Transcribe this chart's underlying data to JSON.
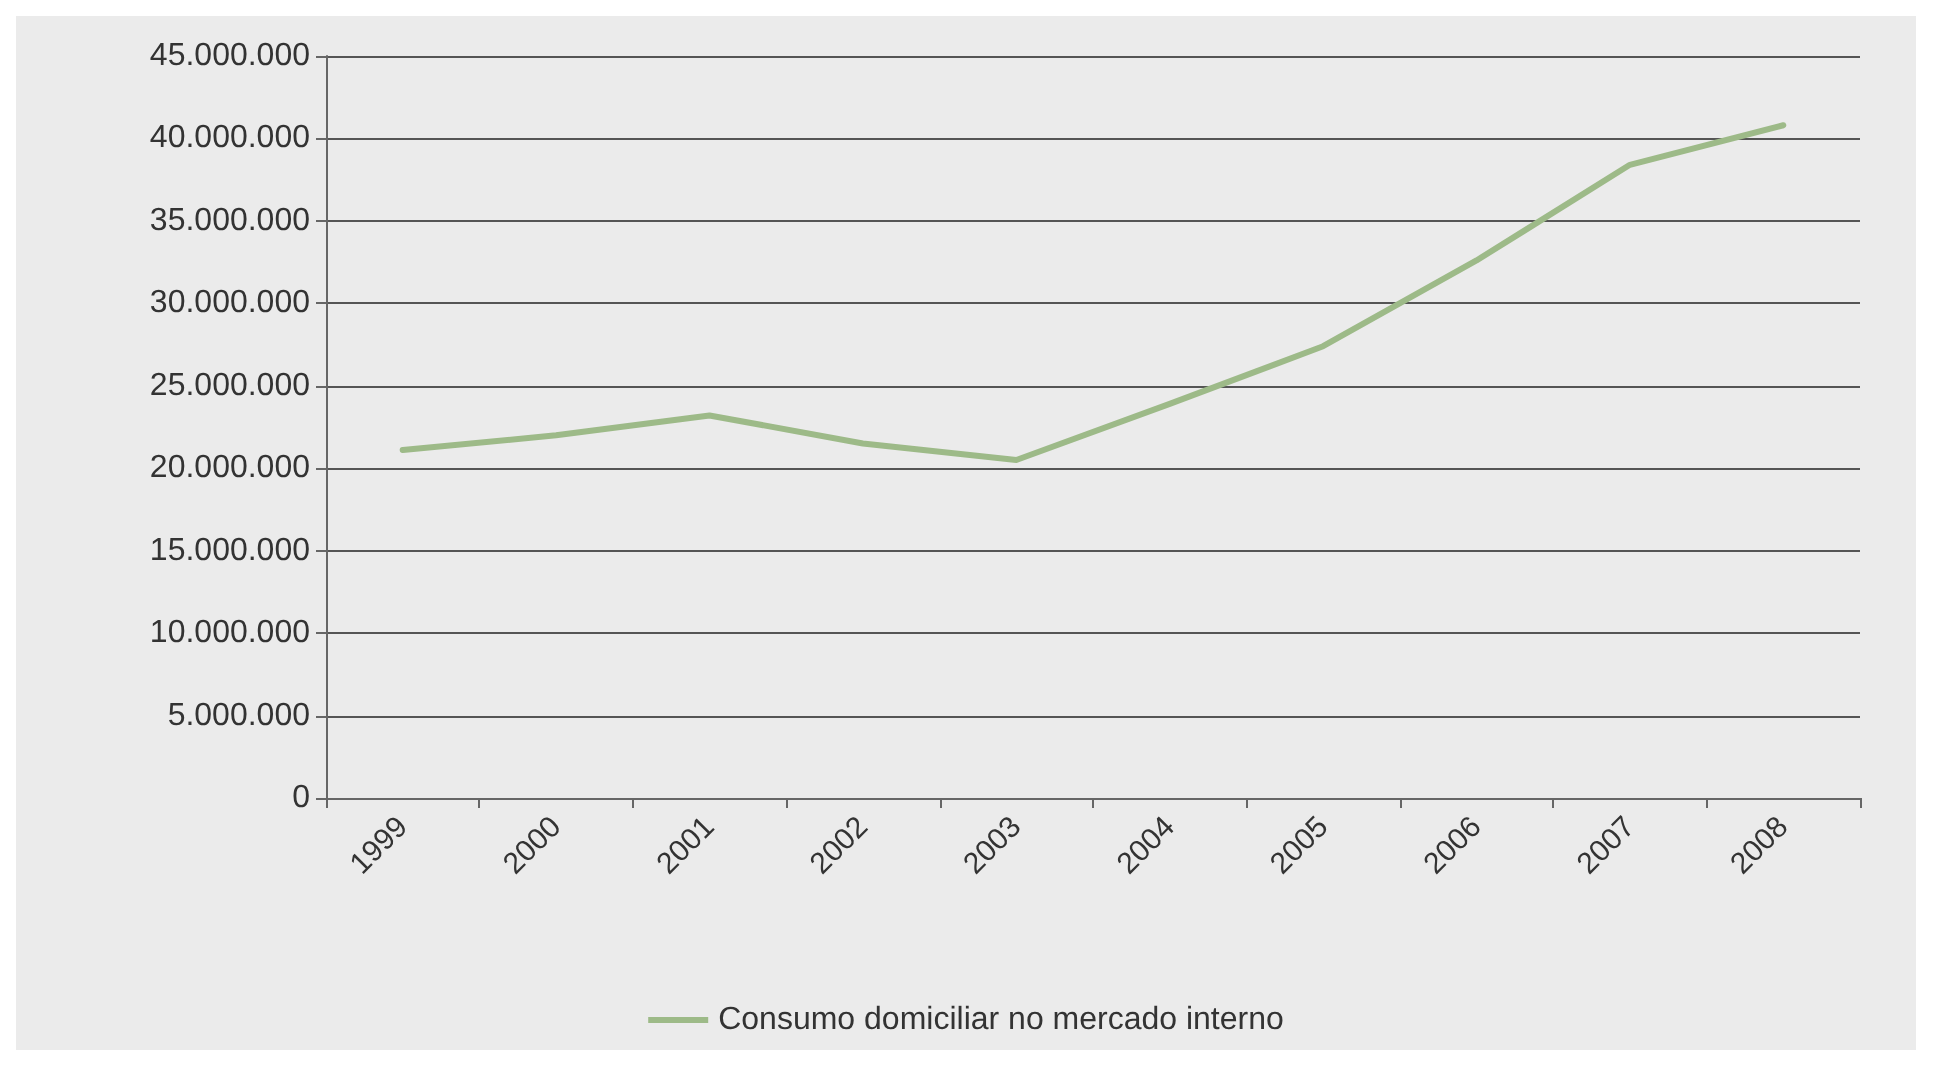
{
  "chart_data": {
    "type": "line",
    "categories": [
      "1999",
      "2000",
      "2001",
      "2002",
      "2003",
      "2004",
      "2005",
      "2006",
      "2007",
      "2008"
    ],
    "series": [
      {
        "name": "Consumo domiciliar no mercado interno",
        "color": "#9dba88",
        "values": [
          21100000,
          22000000,
          23200000,
          21500000,
          20500000,
          23900000,
          27400000,
          32600000,
          38400000,
          40800000
        ]
      }
    ],
    "ylim": [
      0,
      45000000
    ],
    "yticks": [
      {
        "value": 0,
        "label": "0"
      },
      {
        "value": 5000000,
        "label": "5.000.000"
      },
      {
        "value": 10000000,
        "label": "10.000.000"
      },
      {
        "value": 15000000,
        "label": "15.000.000"
      },
      {
        "value": 20000000,
        "label": "20.000.000"
      },
      {
        "value": 25000000,
        "label": "25.000.000"
      },
      {
        "value": 30000000,
        "label": "30.000.000"
      },
      {
        "value": 35000000,
        "label": "35.000.000"
      },
      {
        "value": 40000000,
        "label": "40.000.000"
      },
      {
        "value": 45000000,
        "label": "45.000.000"
      }
    ],
    "grid": "y",
    "legend": "bottom",
    "marker": "none",
    "line_style": "solid"
  }
}
